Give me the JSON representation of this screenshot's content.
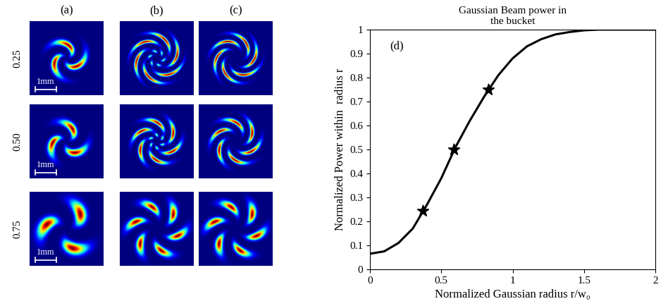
{
  "panels": {
    "columns": [
      "(a)",
      "(b)",
      "(c)"
    ],
    "rows": [
      "0.25",
      "0.50",
      "0.75"
    ],
    "scale_bar": "1mm"
  },
  "chart_data": {
    "type": "line",
    "title": "Gaussian Beam power in\nthe bucket",
    "panel_label": "(d)",
    "x_label": "Normalized Gaussian radius r/w₀",
    "y_label": "Normalized Power within  radius r",
    "series": [
      {
        "type": "line",
        "color": "#000000",
        "line_style": "solid",
        "x": [
          0,
          0.1,
          0.2,
          0.3,
          0.4,
          0.5,
          0.6,
          0.7,
          0.8,
          0.9,
          1.0,
          1.1,
          1.2,
          1.3,
          1.4,
          1.5,
          1.6,
          1.8,
          2.0
        ],
        "values": [
          0.065,
          0.075,
          0.11,
          0.17,
          0.27,
          0.38,
          0.51,
          0.62,
          0.72,
          0.81,
          0.88,
          0.93,
          0.96,
          0.98,
          0.99,
          0.997,
          1.0,
          1.0,
          1.0
        ]
      },
      {
        "type": "scatter",
        "color": "#000000",
        "marker": "star",
        "x": [
          0.37,
          0.59,
          0.83
        ],
        "values": [
          0.245,
          0.5,
          0.75
        ]
      }
    ],
    "xlim": [
      0,
      2
    ],
    "xticks": [
      0,
      0.5,
      1,
      1.5,
      2
    ],
    "ylim": [
      0,
      1
    ],
    "yticks": [
      0,
      0.1,
      0.2,
      0.3,
      0.4,
      0.5,
      0.6,
      0.7,
      0.8,
      0.9,
      1
    ],
    "grid": false
  }
}
